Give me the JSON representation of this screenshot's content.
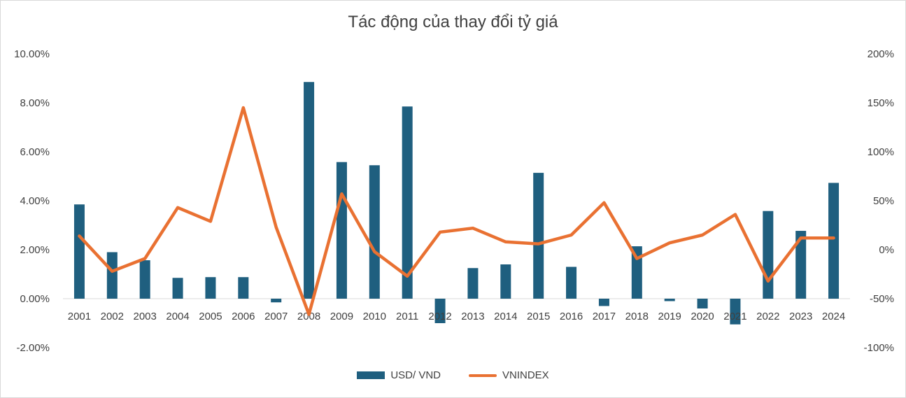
{
  "chart_data": {
    "type": "bar",
    "title": "Tác động của thay đổi tỷ giá",
    "categories": [
      "2001",
      "2002",
      "2003",
      "2004",
      "2005",
      "2006",
      "2007",
      "2008",
      "2009",
      "2010",
      "2011",
      "2012",
      "2013",
      "2014",
      "2015",
      "2016",
      "2017",
      "2018",
      "2019",
      "2020",
      "2021",
      "2022",
      "2023",
      "2024"
    ],
    "series": [
      {
        "name": "USD/ VND",
        "type": "bar",
        "axis": "left",
        "color": "#1f5f7f",
        "values": [
          3.85,
          1.9,
          1.57,
          0.85,
          0.88,
          0.88,
          -0.15,
          8.85,
          5.58,
          5.45,
          7.85,
          -1.0,
          1.25,
          1.4,
          5.14,
          1.3,
          -0.3,
          2.14,
          -0.1,
          -0.4,
          -1.05,
          3.58,
          2.77,
          4.73
        ]
      },
      {
        "name": "VNINDEX",
        "type": "line",
        "axis": "right",
        "color": "#e97132",
        "values": [
          14,
          -22,
          -9,
          43,
          29,
          145,
          23,
          -66,
          57,
          -2,
          -27,
          18,
          22,
          8,
          6,
          15,
          48,
          -9,
          7,
          15,
          36,
          -32,
          12,
          12
        ]
      }
    ],
    "y_left": {
      "min": -2,
      "max": 10,
      "step": 2,
      "labels": [
        "-2.00%",
        "0.00%",
        "2.00%",
        "4.00%",
        "6.00%",
        "8.00%",
        "10.00%"
      ]
    },
    "y_right": {
      "min": -100,
      "max": 200,
      "step": 50,
      "labels": [
        "-100%",
        "-50%",
        "0%",
        "50%",
        "100%",
        "150%",
        "200%"
      ]
    },
    "grid": false,
    "legend_position": "bottom"
  }
}
